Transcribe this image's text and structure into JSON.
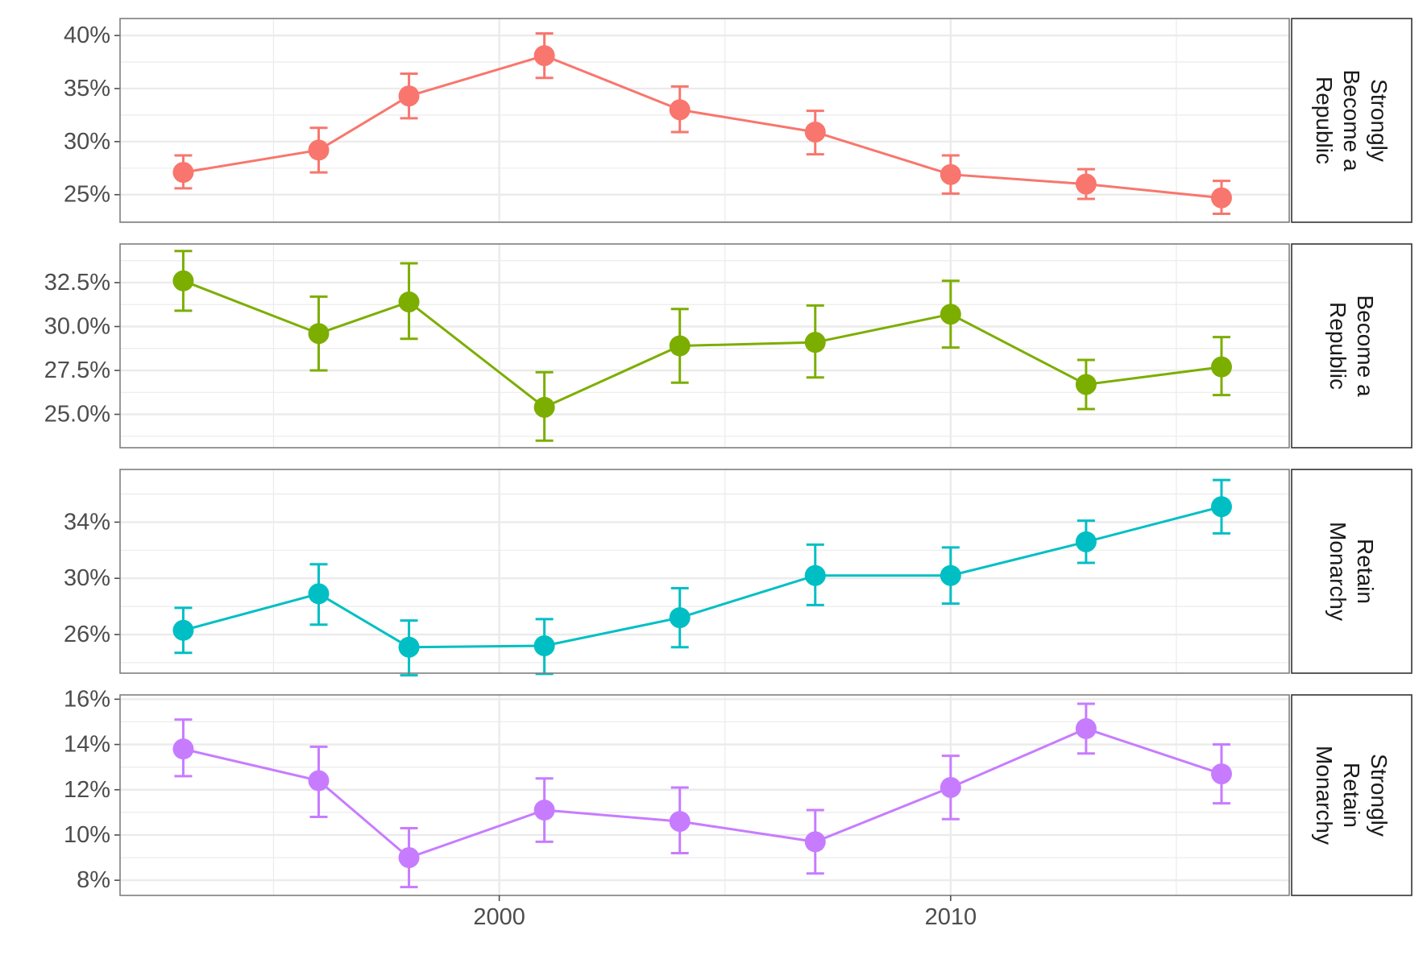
{
  "chart_data": {
    "type": "line",
    "facet_layout": "vertical",
    "x": [
      1993,
      1996,
      1998,
      2001,
      2004,
      2007,
      2010,
      2013,
      2016
    ],
    "x_axis": {
      "range": [
        1991.6,
        2017.5
      ],
      "ticks": [
        2000,
        2010
      ],
      "tick_labels": [
        "2000",
        "2010"
      ]
    },
    "grid": true,
    "legend": "none",
    "error_bars": true,
    "panels": [
      {
        "strip_label": [
          "Strongly",
          "Become a",
          "Republic"
        ],
        "color": "#F8766D",
        "ylim": [
          0.224,
          0.416
        ],
        "yticks": [
          0.25,
          0.3,
          0.35,
          0.4
        ],
        "ytick_labels": [
          "25%",
          "30%",
          "35%",
          "40%"
        ],
        "y": [
          0.271,
          0.292,
          0.343,
          0.381,
          0.33,
          0.309,
          0.269,
          0.26,
          0.247
        ],
        "ymin": [
          0.256,
          0.271,
          0.322,
          0.36,
          0.309,
          0.288,
          0.251,
          0.246,
          0.232
        ],
        "ymax": [
          0.287,
          0.313,
          0.364,
          0.402,
          0.352,
          0.329,
          0.287,
          0.274,
          0.263
        ]
      },
      {
        "strip_label": [
          "Become a",
          "Republic"
        ],
        "color": "#7CAE00",
        "ylim": [
          0.231,
          0.347
        ],
        "yticks": [
          0.25,
          0.275,
          0.3,
          0.325
        ],
        "ytick_labels": [
          "25.0%",
          "27.5%",
          "30.0%",
          "32.5%"
        ],
        "y": [
          0.326,
          0.296,
          0.314,
          0.254,
          0.289,
          0.291,
          0.307,
          0.267,
          0.277
        ],
        "ymin": [
          0.309,
          0.275,
          0.293,
          0.235,
          0.268,
          0.271,
          0.288,
          0.253,
          0.261
        ],
        "ymax": [
          0.343,
          0.317,
          0.336,
          0.274,
          0.31,
          0.312,
          0.326,
          0.281,
          0.294
        ]
      },
      {
        "strip_label": [
          "Retain",
          "Monarchy"
        ],
        "color": "#00BFC4",
        "ylim": [
          0.2325,
          0.3775
        ],
        "yticks": [
          0.26,
          0.3,
          0.34
        ],
        "ytick_labels": [
          "26%",
          "30%",
          "34%"
        ],
        "y": [
          0.263,
          0.289,
          0.251,
          0.252,
          0.272,
          0.302,
          0.302,
          0.326,
          0.351
        ],
        "ymin": [
          0.247,
          0.267,
          0.231,
          0.232,
          0.251,
          0.281,
          0.282,
          0.311,
          0.332
        ],
        "ymax": [
          0.279,
          0.31,
          0.27,
          0.271,
          0.293,
          0.324,
          0.322,
          0.341,
          0.37
        ]
      },
      {
        "strip_label": [
          "Strongly",
          "Retain",
          "Monarchy"
        ],
        "color": "#C77CFF",
        "ylim": [
          0.0733,
          0.1619
        ],
        "yticks": [
          0.08,
          0.1,
          0.12,
          0.14,
          0.16
        ],
        "ytick_labels": [
          "8%",
          "10%",
          "12%",
          "14%",
          "16%"
        ],
        "y": [
          0.138,
          0.124,
          0.09,
          0.111,
          0.106,
          0.097,
          0.121,
          0.147,
          0.127
        ],
        "ymin": [
          0.126,
          0.108,
          0.077,
          0.097,
          0.092,
          0.083,
          0.107,
          0.136,
          0.114
        ],
        "ymax": [
          0.151,
          0.139,
          0.103,
          0.125,
          0.121,
          0.111,
          0.135,
          0.158,
          0.14
        ]
      }
    ]
  }
}
